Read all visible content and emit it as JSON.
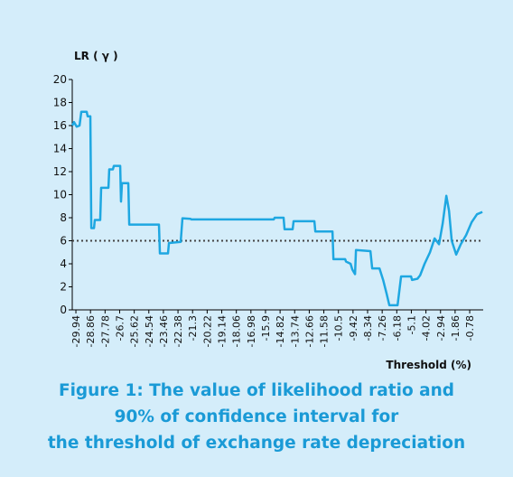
{
  "chart_data": {
    "type": "line",
    "title": "LR ( γ )",
    "x_label": "Threshold (%)",
    "caption": [
      "Figure 1: The value of likelihood ratio and",
      "90% of confidence interval for",
      "the threshold of exchange rate depreciation"
    ],
    "color": "#1ea7e1",
    "x": [
      -30.21,
      -30.08,
      -29.88,
      -29.67,
      -29.54,
      -29.14,
      -29.07,
      -28.87,
      -28.8,
      -28.6,
      -28.54,
      -28.14,
      -28.07,
      -27.53,
      -27.47,
      -27.2,
      -27.13,
      -26.66,
      -26.6,
      -26.53,
      -26.06,
      -25.99,
      -23.79,
      -23.72,
      -23.12,
      -23.05,
      -22.18,
      -22.05,
      -21.45,
      -21.38,
      -15.29,
      -15.22,
      -14.56,
      -14.49,
      -13.89,
      -13.82,
      -12.28,
      -12.21,
      -10.94,
      -10.87,
      -10.0,
      -9.94,
      -9.6,
      -9.47,
      -9.27,
      -9.2,
      -8.13,
      -8.07,
      -8.0,
      -7.46,
      -7.19,
      -6.93,
      -6.73,
      -6.12,
      -5.86,
      -5.12,
      -5.05,
      -4.65,
      -4.45,
      -4.12,
      -3.72,
      -3.38,
      -3.05,
      -2.78,
      -2.51,
      -2.31,
      -2.11,
      -1.78,
      -1.44,
      -1.04,
      -0.64,
      -0.24,
      0.16
    ],
    "values": [
      16.0,
      16.3,
      15.9,
      16.0,
      17.2,
      17.2,
      16.8,
      16.8,
      7.1,
      7.1,
      7.8,
      7.8,
      10.6,
      10.6,
      12.2,
      12.2,
      12.5,
      12.5,
      9.4,
      11.0,
      11.0,
      7.4,
      7.4,
      4.9,
      4.9,
      5.8,
      5.9,
      7.95,
      7.9,
      7.85,
      7.85,
      8.0,
      8.0,
      7.0,
      7.0,
      7.7,
      7.7,
      6.8,
      6.8,
      4.4,
      4.4,
      4.2,
      4.0,
      3.5,
      3.1,
      5.2,
      5.1,
      4.4,
      3.6,
      3.6,
      2.6,
      1.4,
      0.4,
      0.4,
      2.9,
      2.9,
      2.6,
      2.7,
      3.0,
      4.0,
      5.0,
      6.2,
      5.7,
      7.5,
      9.9,
      8.6,
      6.0,
      4.8,
      5.7,
      6.5,
      7.6,
      8.3,
      8.5
    ],
    "xlim": [
      -30.21,
      0.22
    ],
    "xticks": [
      -29.94,
      -28.86,
      -27.78,
      -26.7,
      -25.62,
      -24.54,
      -23.46,
      -22.38,
      -21.3,
      -20.22,
      -19.14,
      -18.06,
      -16.98,
      -15.9,
      -14.82,
      -13.74,
      -12.66,
      -11.58,
      -10.5,
      -9.42,
      -8.34,
      -7.26,
      -6.18,
      -5.1,
      -4.02,
      -2.94,
      -1.86,
      -0.78
    ],
    "ylim": [
      0,
      20
    ],
    "yticks": [
      0,
      2,
      4,
      6,
      8,
      10,
      12,
      14,
      16,
      18,
      20
    ],
    "reference_line": {
      "value": 6,
      "color": "#444444",
      "style": "dotted"
    }
  }
}
